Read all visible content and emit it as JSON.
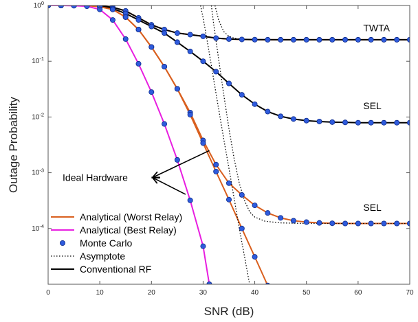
{
  "chart_data": {
    "type": "line",
    "xlabel": "SNR (dB)",
    "ylabel": "Outage Probability",
    "xlim": [
      0,
      70
    ],
    "ylim": [
      1e-05,
      1
    ],
    "yscale": "log",
    "xticks": [
      0,
      10,
      20,
      30,
      40,
      50,
      60,
      70
    ],
    "xtick_labels": [
      "0",
      "10",
      "20",
      "30",
      "40",
      "50",
      "60",
      "70"
    ],
    "yticks": [
      1,
      0.1,
      0.01,
      0.001,
      0.0001
    ],
    "ytick_labels": [
      "10^0",
      "10^-1",
      "10^-2",
      "10^-3",
      "10^-4"
    ],
    "grid": false,
    "legend_position": "bottom-left",
    "legend": [
      {
        "label": "Analytical (Worst Relay)",
        "style": "line",
        "color": "#d95f1e"
      },
      {
        "label": "Analytical (Best Relay)",
        "style": "line",
        "color": "#e81ee0"
      },
      {
        "label": "Monte Carlo",
        "style": "marker",
        "color": "#2f5bdc"
      },
      {
        "label": "Asymptote",
        "style": "dotted",
        "color": "#000000"
      },
      {
        "label": "Conventional RF",
        "style": "line",
        "color": "#000000"
      }
    ],
    "annotations": [
      {
        "text": "TWTA",
        "x": 61,
        "y": 0.4
      },
      {
        "text": "SEL",
        "x": 61,
        "y": 0.016
      },
      {
        "text": "SEL",
        "x": 61,
        "y": 0.00024
      },
      {
        "text": "Ideal Hardware",
        "x": 2.8,
        "y": 0.00082
      }
    ],
    "arrows": [
      {
        "from": [
          20.2,
          0.00082
        ],
        "to": [
          31.2,
          0.0025
        ]
      },
      {
        "from": [
          20.2,
          0.00082
        ],
        "to": [
          26.6,
          0.00041
        ]
      }
    ],
    "series": [
      {
        "kind": "worst-twta",
        "color": "#d95f1e",
        "x": [
          0,
          2.5,
          5,
          7.5,
          10,
          12.5,
          15,
          17.5,
          20,
          22.5,
          25,
          27.5,
          30,
          32.5,
          35,
          37.5,
          40,
          42.5,
          45,
          47.5,
          50,
          52.5,
          55,
          57.5,
          60,
          62.5,
          65,
          67.5,
          70
        ],
        "y": [
          1,
          1,
          1,
          1,
          0.98,
          0.93,
          0.8,
          0.6,
          0.45,
          0.37,
          0.32,
          0.3,
          0.28,
          0.26,
          0.25,
          0.246,
          0.244,
          0.243,
          0.243,
          0.243,
          0.243,
          0.243,
          0.243,
          0.243,
          0.243,
          0.243,
          0.243,
          0.243,
          0.243
        ],
        "markers": true
      },
      {
        "kind": "conventional-twta",
        "color": "#000000",
        "x": [
          0,
          5,
          10,
          12.5,
          15,
          17.5,
          20,
          22.5,
          25,
          27.5,
          30,
          32.5,
          35,
          40,
          45,
          50,
          55,
          60,
          65,
          70
        ],
        "y": [
          1,
          1,
          0.98,
          0.93,
          0.8,
          0.6,
          0.45,
          0.37,
          0.32,
          0.3,
          0.28,
          0.26,
          0.25,
          0.244,
          0.243,
          0.243,
          0.243,
          0.243,
          0.243,
          0.243
        ],
        "markers": false
      },
      {
        "kind": "conventional-sel",
        "color": "#000000",
        "x": [
          0,
          2.5,
          5,
          7.5,
          10,
          12.5,
          15,
          17.5,
          20,
          22.5,
          25,
          27.5,
          30,
          32.5,
          35,
          37.5,
          40,
          42.5,
          45,
          47.5,
          50,
          52.5,
          55,
          57.5,
          60,
          62.5,
          65,
          67.5,
          70
        ],
        "y": [
          1,
          1,
          1,
          1,
          0.96,
          0.88,
          0.72,
          0.55,
          0.42,
          0.32,
          0.22,
          0.15,
          0.1,
          0.065,
          0.04,
          0.025,
          0.017,
          0.0125,
          0.0103,
          0.0092,
          0.0086,
          0.0083,
          0.0081,
          0.008,
          0.0079,
          0.0079,
          0.0079,
          0.0079,
          0.0079
        ],
        "markers": true
      },
      {
        "kind": "worst-sel",
        "color": "#d95f1e",
        "x": [
          0,
          2.5,
          5,
          7.5,
          10,
          12.5,
          15,
          17.5,
          20,
          22.5,
          25,
          27.5,
          30,
          32.5,
          35,
          37.5,
          40,
          42.5,
          45,
          47.5,
          50,
          52.5,
          55,
          57.5,
          60,
          62.5,
          65,
          67.5,
          70
        ],
        "y": [
          1,
          1,
          1,
          1,
          0.95,
          0.85,
          0.62,
          0.37,
          0.18,
          0.08,
          0.032,
          0.012,
          0.0038,
          0.0014,
          0.00065,
          0.0004,
          0.00026,
          0.00019,
          0.000155,
          0.000138,
          0.00013,
          0.000126,
          0.000124,
          0.000123,
          0.000123,
          0.000123,
          0.000123,
          0.000123,
          0.000123
        ],
        "markers": true
      },
      {
        "kind": "worst-ideal",
        "color": "#d95f1e",
        "x": [
          0,
          2.5,
          5,
          7.5,
          10,
          12.5,
          15,
          17.5,
          20,
          22.5,
          25,
          27.5,
          30,
          32.5,
          35,
          37.5,
          40,
          42.5
        ],
        "y": [
          1,
          1,
          1,
          1,
          0.95,
          0.85,
          0.62,
          0.37,
          0.18,
          0.08,
          0.032,
          0.011,
          0.0034,
          0.00105,
          0.00033,
          0.0001,
          3.1e-05,
          9.5e-06
        ],
        "markers": true
      },
      {
        "kind": "best-ideal",
        "color": "#e81ee0",
        "x": [
          0,
          2.5,
          5,
          7.5,
          10,
          12.5,
          15,
          17.5,
          20,
          22.5,
          25,
          27.5,
          30,
          31.2
        ],
        "y": [
          1,
          1,
          0.99,
          0.97,
          0.85,
          0.55,
          0.25,
          0.09,
          0.028,
          0.0075,
          0.0017,
          0.00032,
          4.8e-05,
          1e-05
        ],
        "markers": true
      },
      {
        "kind": "asymptote-best",
        "color": "#000000",
        "dotted": true,
        "x": [
          29.5,
          30,
          31,
          32,
          33,
          34,
          35,
          36,
          37,
          38,
          39,
          40
        ],
        "y": [
          1,
          0.6,
          0.18,
          0.05,
          0.014,
          0.004,
          0.0012,
          0.00035,
          0.0001,
          3.2e-05,
          1e-05,
          3.2e-06
        ],
        "markers": false
      },
      {
        "kind": "asymptote-sel-low",
        "color": "#000000",
        "dotted": true,
        "x": [
          31.6,
          32,
          33,
          34,
          35,
          36,
          37,
          38,
          39,
          40,
          42,
          45,
          50,
          55,
          60,
          65,
          70
        ],
        "y": [
          1,
          0.5,
          0.11,
          0.025,
          0.0062,
          0.0018,
          0.00065,
          0.00032,
          0.0002,
          0.00016,
          0.000135,
          0.000126,
          0.000123,
          0.000123,
          0.000123,
          0.000123,
          0.000123
        ],
        "markers": false
      },
      {
        "kind": "asymptote-twta",
        "color": "#000000",
        "dotted": true,
        "x": [
          32.3,
          33,
          34,
          35,
          36,
          37,
          38,
          40,
          45,
          50,
          60,
          70
        ],
        "y": [
          1,
          0.55,
          0.34,
          0.28,
          0.26,
          0.25,
          0.246,
          0.244,
          0.243,
          0.243,
          0.243,
          0.243
        ],
        "markers": false
      }
    ]
  }
}
